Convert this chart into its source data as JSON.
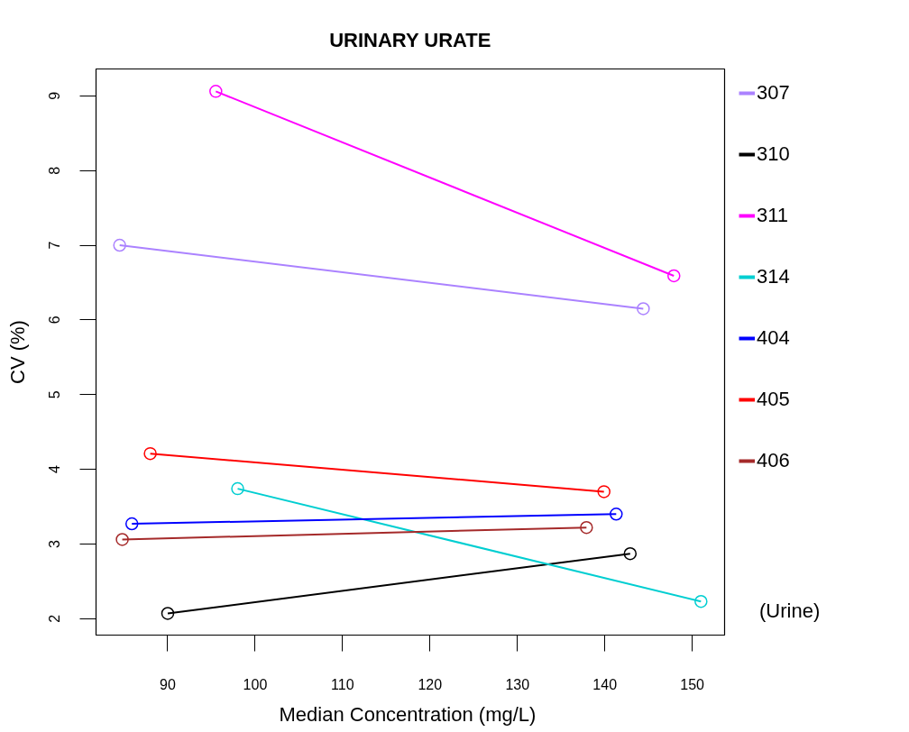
{
  "chart_data": {
    "type": "line",
    "title": "URINARY URATE",
    "xlabel": "Median Concentration  (mg/L)",
    "ylabel": "CV (%)",
    "xlim": [
      81.8,
      153.7
    ],
    "ylim": [
      1.78,
      9.36
    ],
    "xticks": [
      90,
      100,
      110,
      120,
      130,
      140,
      150
    ],
    "yticks": [
      2,
      3,
      4,
      5,
      6,
      7,
      8,
      9
    ],
    "grid": false,
    "legend": "right",
    "marker": "circle",
    "line_style": "solid",
    "annotations": [
      "(Urine)"
    ],
    "series": [
      {
        "name": "307",
        "color": "#ab82ff",
        "x": [
          84.5,
          144.4
        ],
        "values": [
          7.0,
          6.15
        ]
      },
      {
        "name": "310",
        "color": "#000000",
        "x": [
          90,
          142.9
        ],
        "values": [
          2.07,
          2.87
        ]
      },
      {
        "name": "311",
        "color": "#ff00ff",
        "x": [
          95.5,
          147.9
        ],
        "values": [
          9.06,
          6.59
        ]
      },
      {
        "name": "314",
        "color": "#00ced1",
        "x": [
          98,
          151
        ],
        "values": [
          3.74,
          2.23
        ]
      },
      {
        "name": "404",
        "color": "#0000ff",
        "x": [
          85.9,
          141.3
        ],
        "values": [
          3.27,
          3.4
        ]
      },
      {
        "name": "405",
        "color": "#ff0000",
        "x": [
          88,
          139.9
        ],
        "values": [
          4.21,
          3.7
        ]
      },
      {
        "name": "406",
        "color": "#a52a2a",
        "x": [
          84.8,
          137.9
        ],
        "values": [
          3.06,
          3.22
        ]
      }
    ]
  }
}
